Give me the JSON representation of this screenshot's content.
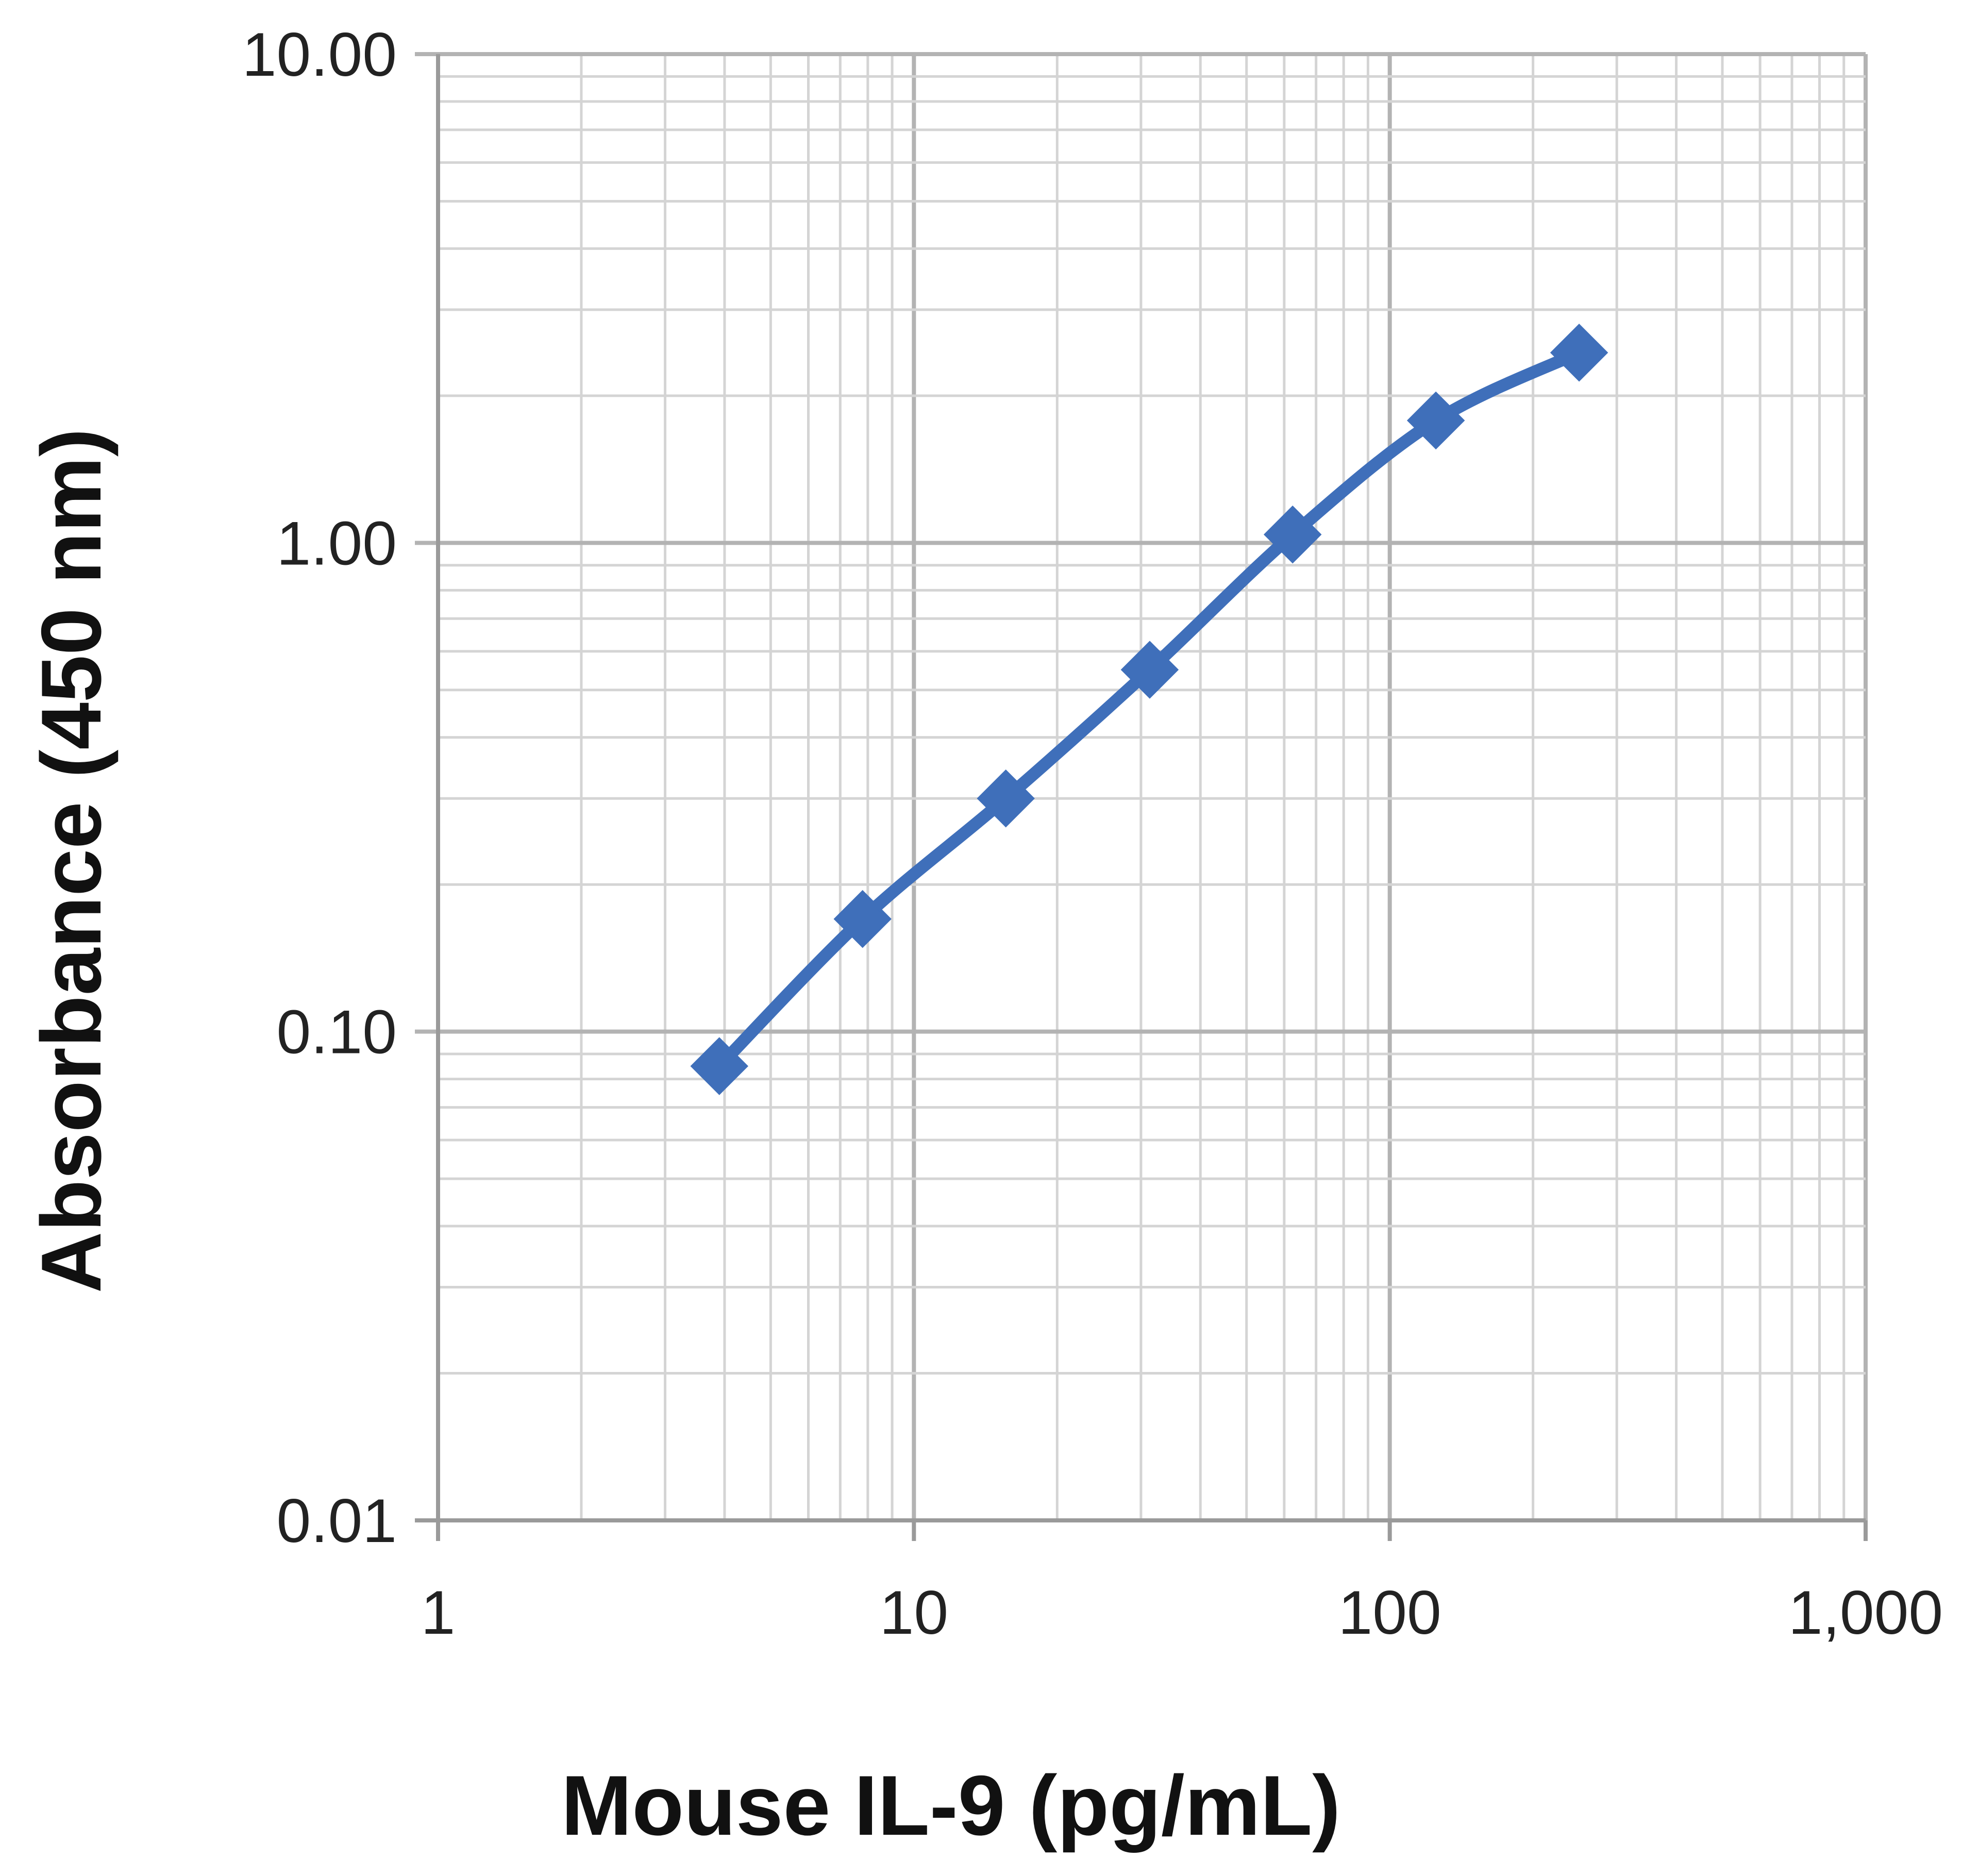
{
  "chart_data": {
    "type": "line",
    "title": "",
    "xlabel": "Mouse IL-9 (pg/mL)",
    "ylabel": "Absorbance  (450 nm)",
    "x_scale": "log",
    "y_scale": "log",
    "xlim": [
      1,
      1000
    ],
    "ylim": [
      0.01,
      10
    ],
    "x_ticks": [
      "1",
      "10",
      "100",
      "1,000"
    ],
    "y_ticks": [
      "0.01",
      "0.10",
      "1.00",
      "10.00"
    ],
    "grid": true,
    "legend": "none",
    "marker": "diamond",
    "series": [
      {
        "x": [
          3.9,
          7.8,
          15.6,
          31.3,
          62.5,
          125,
          250
        ],
        "y": [
          0.085,
          0.17,
          0.3,
          0.55,
          1.04,
          1.78,
          2.45
        ]
      }
    ],
    "colors": {
      "series": "#3f6fba",
      "major_grid": "#b3b3b3",
      "minor_grid": "#d4d4d4"
    }
  }
}
